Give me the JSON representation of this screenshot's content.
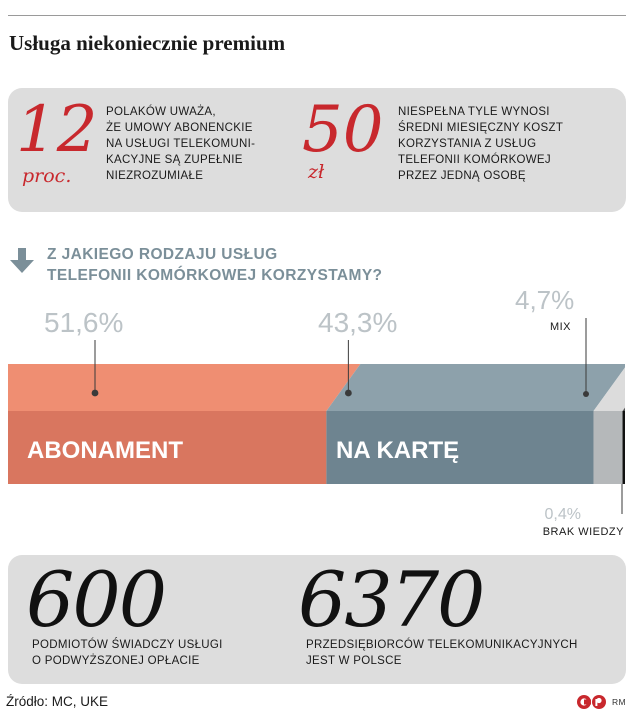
{
  "title": "Usługa niekoniecznie premium",
  "stats_top": [
    {
      "number": "12",
      "unit": "proc.",
      "text": [
        "POLAKÓW UWAŻA,",
        "ŻE UMOWY ABONENCKIE",
        "NA USŁUGI TELEKOMUNI-",
        "KACYJNE SĄ ZUPEŁNIE",
        "NIEZROZUMIAŁE"
      ]
    },
    {
      "number": "50",
      "unit": "zł",
      "text": [
        "NIESPEŁNA TYLE WYNOSI",
        "ŚREDNI MIESIĘCZNY KOSZT",
        "KORZYSTANIA Z USŁUG",
        "TELEFONII KOMÓRKOWEJ",
        "PRZEZ JEDNĄ OSOBĘ"
      ]
    }
  ],
  "question": [
    "Z JAKIEGO RODZAJU USŁUG",
    "TELEFONII KOMÓRKOWEJ KORZYSTAMY?"
  ],
  "chart_data": {
    "type": "bar",
    "orientation": "horizontal-stacked",
    "title": "Z JAKIEGO RODZAJU USŁUG TELEFONII KOMÓRKOWEJ KORZYSTAMY?",
    "categories": [
      "ABONAMENT",
      "NA KARTĘ",
      "MIX",
      "BRAK WIEDZY"
    ],
    "values": [
      51.6,
      43.3,
      4.7,
      0.4
    ],
    "value_labels": [
      "51,6%",
      "43,3%",
      "4,7%",
      "0,4%"
    ],
    "colors": [
      "#d9765f",
      "#6e8490",
      "#b5b8ba",
      "#111111"
    ],
    "top_colors": [
      "#ef8e72",
      "#8da1ab",
      "#dcdcdc",
      "#555555"
    ],
    "unit": "%"
  },
  "stats_bottom": [
    {
      "number": "600",
      "text": [
        "PODMIOTÓW ŚWIADCZY USŁUGI",
        "O PODWYŻSZONEJ OPŁACIE"
      ]
    },
    {
      "number": "6370",
      "text": [
        "PRZEDSIĘBIORCÓW TELEKOMUNIKACYJNYCH",
        "JEST W POLSCE"
      ]
    }
  ],
  "source": "Źródło: MC, UKE",
  "credit": "RM",
  "colors": {
    "accent_red": "#c8282d",
    "panel": "#dddddd",
    "question": "#7b8f99",
    "percent": "#bcc3c7"
  }
}
